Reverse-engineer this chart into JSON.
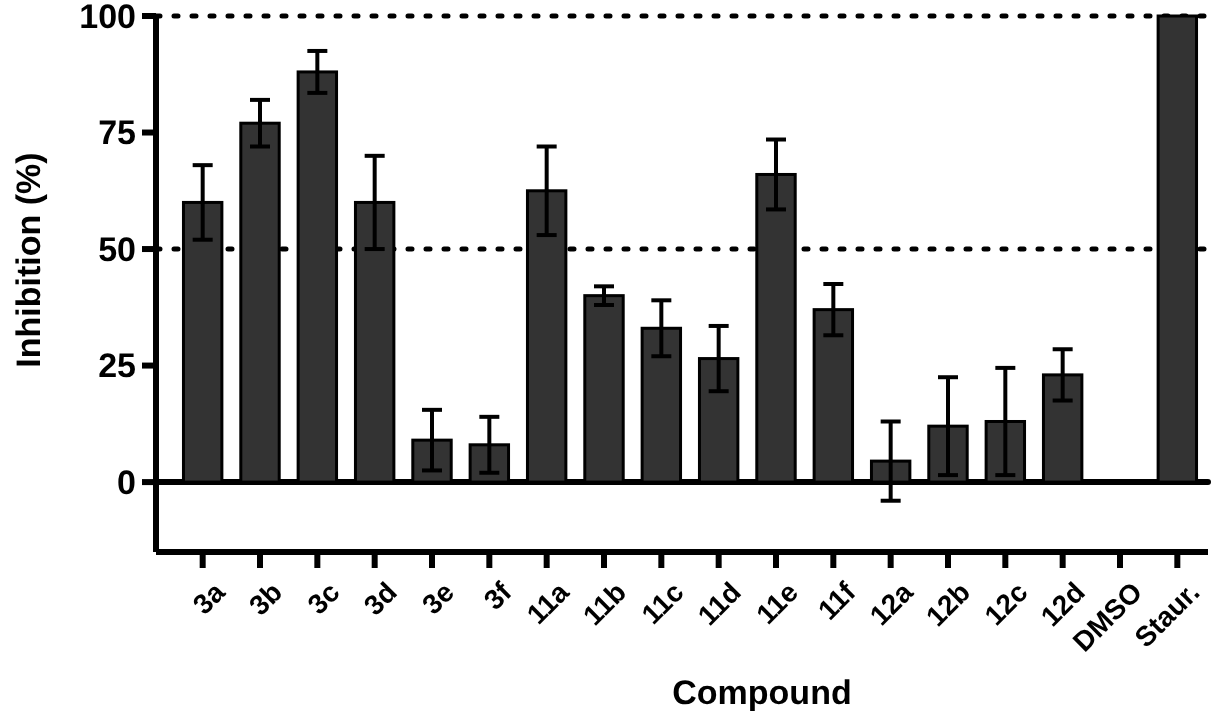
{
  "chart_data": {
    "type": "bar",
    "xlabel": "Compound",
    "ylabel": "Inhibition (%)",
    "categories": [
      "3a",
      "3b",
      "3c",
      "3d",
      "3e",
      "3f",
      "11a",
      "11b",
      "11c",
      "11d",
      "11e",
      "11f",
      "12a",
      "12b",
      "12c",
      "12d",
      "DMSO",
      "Staur."
    ],
    "values": [
      60,
      77,
      88,
      60,
      9,
      8,
      62.5,
      40,
      33,
      26.5,
      66,
      37,
      4.5,
      12,
      13,
      23,
      0,
      100
    ],
    "errors": [
      8,
      5,
      4.5,
      10,
      6.5,
      6,
      9.5,
      2,
      6,
      7,
      7.5,
      5.5,
      8.5,
      10.5,
      11.5,
      5.5,
      null,
      null
    ],
    "color": "#333333",
    "ylim": [
      -15,
      100
    ],
    "yticks": [
      0,
      25,
      50,
      75,
      100
    ],
    "ref_lines": [
      {
        "axis": "y",
        "value": 0,
        "color": "#000000",
        "line_style": "solid"
      },
      {
        "axis": "y",
        "value": 50,
        "color": "#000000",
        "line_style": "dotted"
      },
      {
        "axis": "y",
        "value": 100,
        "color": "#000000",
        "line_style": "dotted"
      }
    ]
  }
}
